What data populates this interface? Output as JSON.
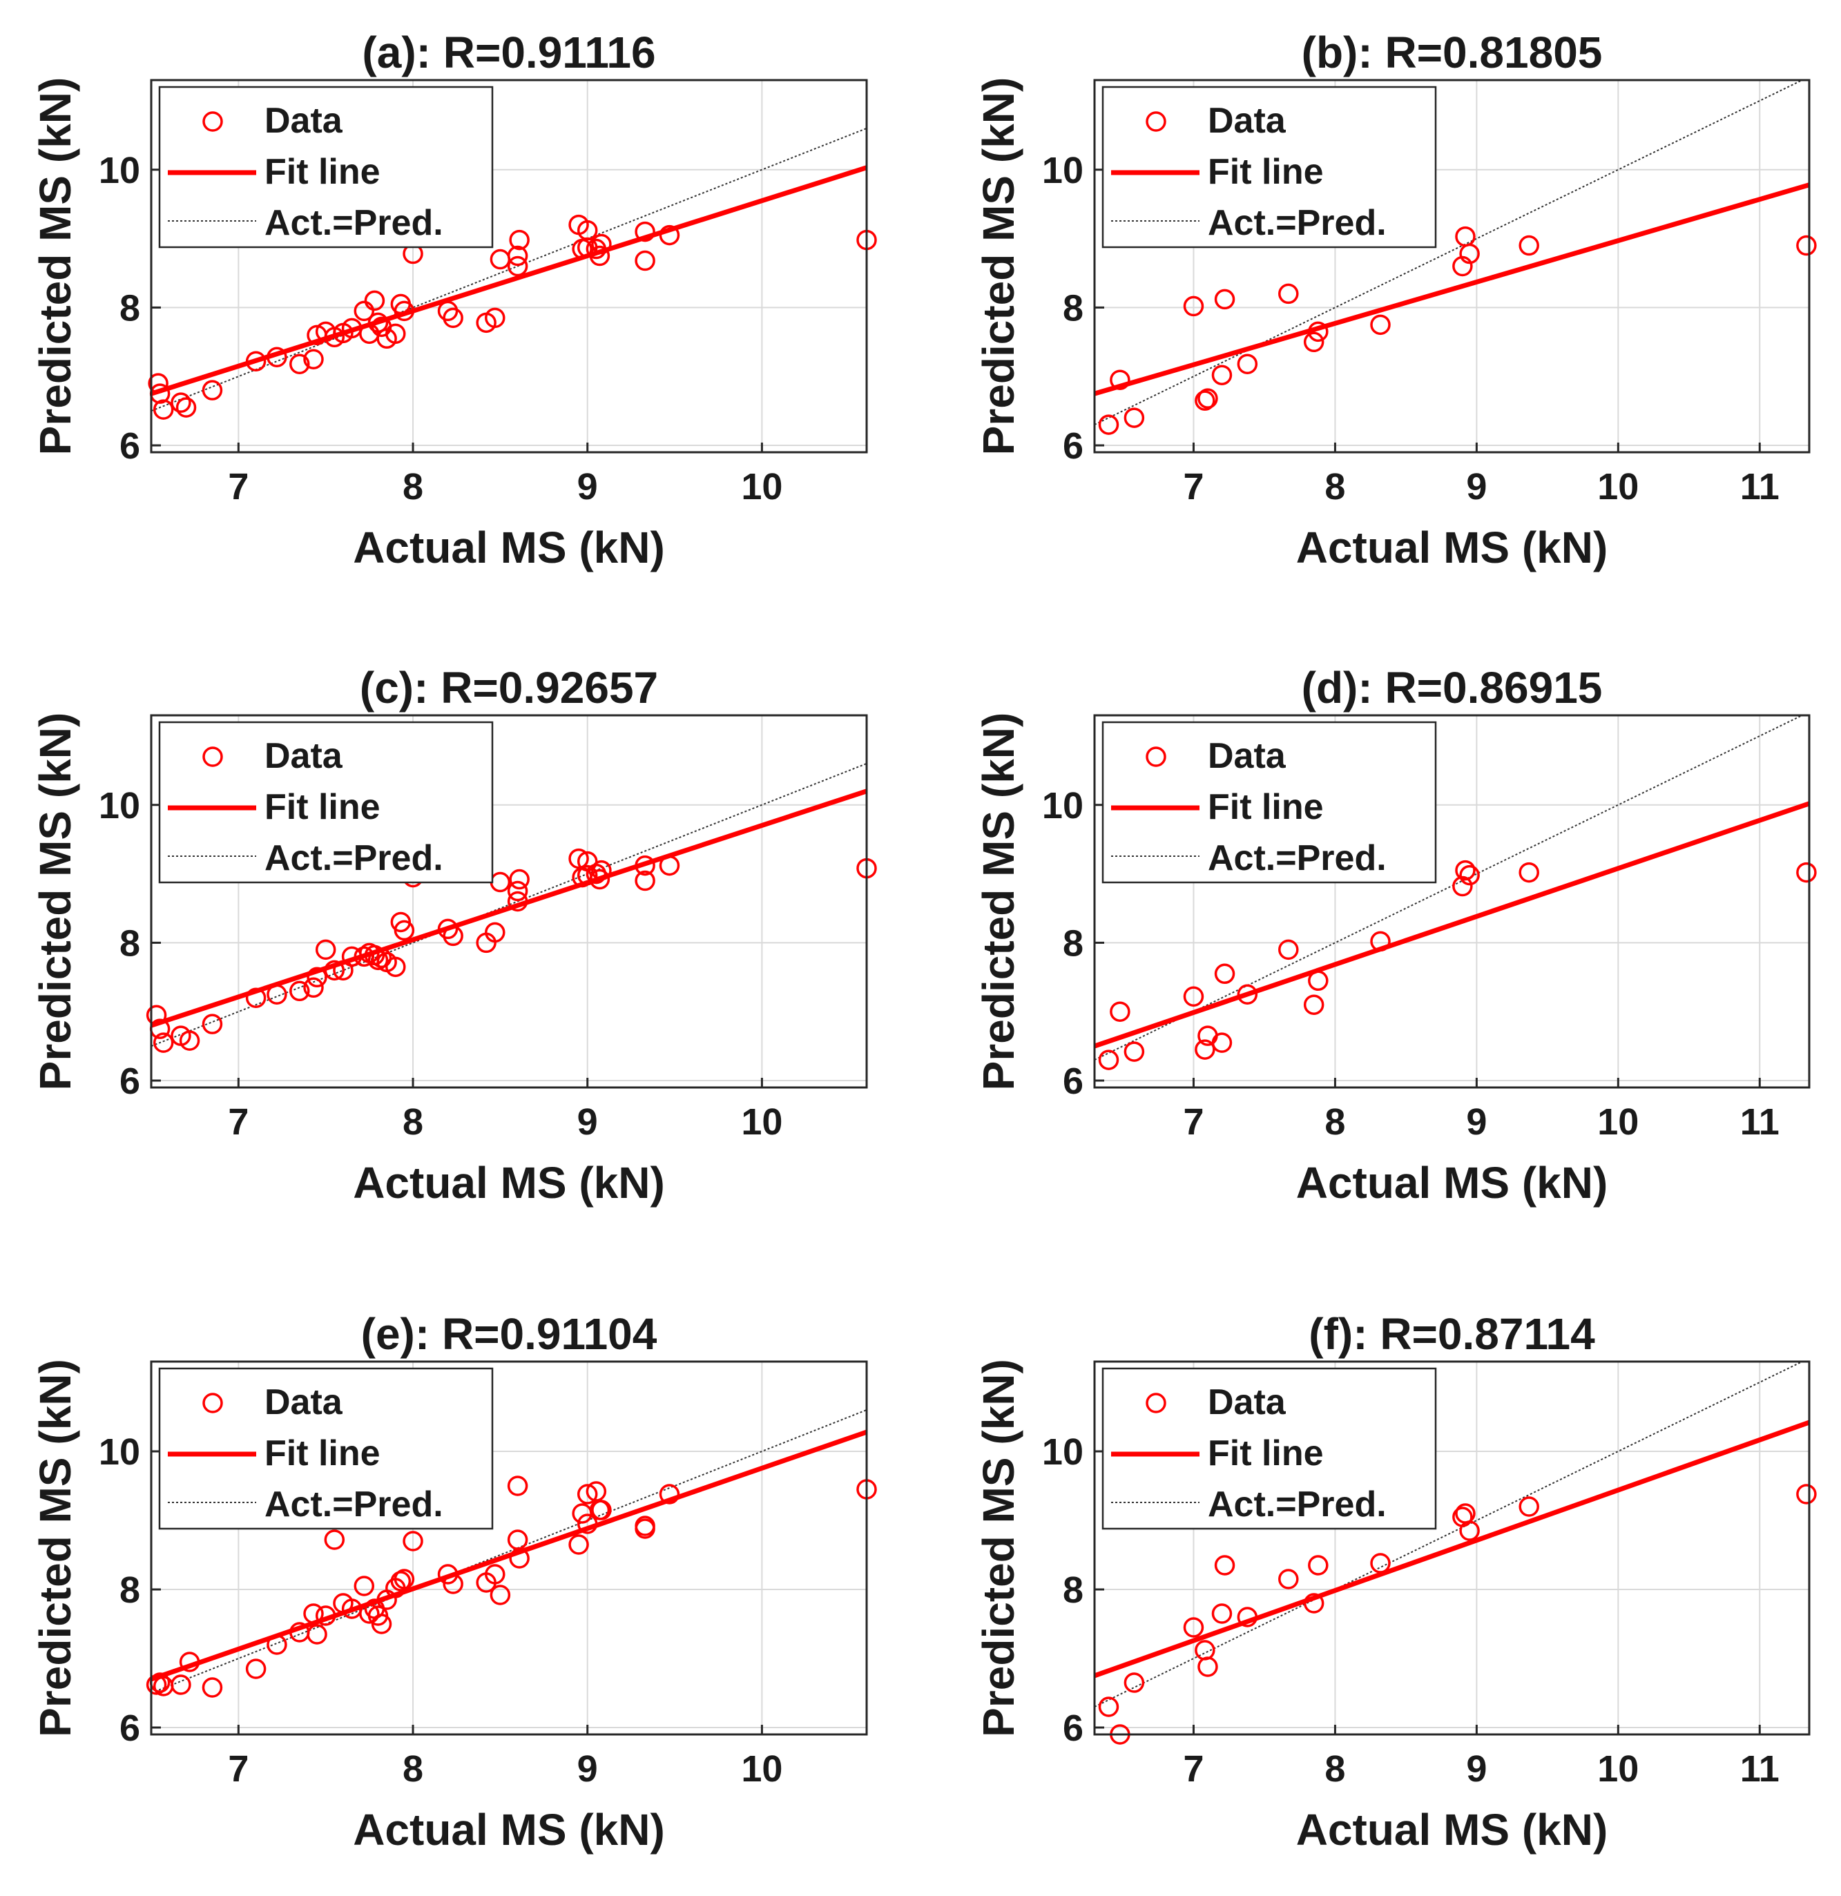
{
  "chart_data": [
    {
      "type": "scatter",
      "title": "(a): R=0.91116",
      "xlabel": "Actual MS (kN)",
      "ylabel": "Predicted MS (kN)",
      "xlim": [
        6.5,
        10.6
      ],
      "ylim": [
        5.9,
        11.3
      ],
      "xticks": [
        7,
        8,
        9,
        10
      ],
      "yticks": [
        6,
        8,
        10
      ],
      "grid": true,
      "legend": {
        "position": "top-left",
        "entries": [
          "Data",
          "Fit line",
          "Act.=Pred."
        ]
      },
      "fit_line": [
        [
          6.5,
          6.75
        ],
        [
          10.6,
          10.03
        ]
      ],
      "identity_line": [
        [
          6.5,
          6.5
        ],
        [
          10.6,
          10.6
        ]
      ],
      "x": [
        6.54,
        6.55,
        6.57,
        6.67,
        6.7,
        6.85,
        7.1,
        7.22,
        7.35,
        7.43,
        7.45,
        7.5,
        7.55,
        7.6,
        7.65,
        7.72,
        7.75,
        7.78,
        7.8,
        7.82,
        7.85,
        7.9,
        7.93,
        7.95,
        8.0,
        8.2,
        8.23,
        8.42,
        8.47,
        8.5,
        8.6,
        8.6,
        8.61,
        8.95,
        8.97,
        9.0,
        9.0,
        9.05,
        9.07,
        9.08,
        9.33,
        9.33,
        9.47,
        10.6
      ],
      "y": [
        6.9,
        6.75,
        6.52,
        6.62,
        6.55,
        6.8,
        7.22,
        7.28,
        7.18,
        7.25,
        7.6,
        7.65,
        7.57,
        7.63,
        7.7,
        7.95,
        7.62,
        8.1,
        7.78,
        7.72,
        7.55,
        7.62,
        8.05,
        7.95,
        8.78,
        7.95,
        7.85,
        7.78,
        7.85,
        8.7,
        8.6,
        8.75,
        8.98,
        9.2,
        8.85,
        9.12,
        8.87,
        8.85,
        8.75,
        8.92,
        9.1,
        8.68,
        9.05,
        8.98
      ]
    },
    {
      "type": "scatter",
      "title": "(b): R=0.81805",
      "xlabel": "Actual MS (kN)",
      "ylabel": "Predicted MS (kN)",
      "xlim": [
        6.3,
        11.35
      ],
      "ylim": [
        5.9,
        11.3
      ],
      "xticks": [
        7,
        8,
        9,
        10,
        11
      ],
      "yticks": [
        6,
        8,
        10
      ],
      "grid": true,
      "legend": {
        "position": "top-left",
        "entries": [
          "Data",
          "Fit line",
          "Act.=Pred."
        ]
      },
      "fit_line": [
        [
          6.3,
          6.75
        ],
        [
          11.35,
          9.78
        ]
      ],
      "identity_line": [
        [
          6.3,
          6.3
        ],
        [
          11.35,
          11.35
        ]
      ],
      "x": [
        6.4,
        6.48,
        6.58,
        7.0,
        7.08,
        7.1,
        7.2,
        7.22,
        7.38,
        7.67,
        7.85,
        7.88,
        8.32,
        8.9,
        8.92,
        8.95,
        9.37,
        11.33
      ],
      "y": [
        6.3,
        6.95,
        6.4,
        8.02,
        6.65,
        6.68,
        7.02,
        8.12,
        7.18,
        8.2,
        7.5,
        7.65,
        7.75,
        8.6,
        9.03,
        8.78,
        8.9,
        8.9
      ]
    },
    {
      "type": "scatter",
      "title": "(c): R=0.92657",
      "xlabel": "Actual MS (kN)",
      "ylabel": "Predicted MS (kN)",
      "xlim": [
        6.5,
        10.6
      ],
      "ylim": [
        5.9,
        11.3
      ],
      "xticks": [
        7,
        8,
        9,
        10
      ],
      "yticks": [
        6,
        8,
        10
      ],
      "grid": true,
      "legend": {
        "position": "top-left",
        "entries": [
          "Data",
          "Fit line",
          "Act.=Pred."
        ]
      },
      "fit_line": [
        [
          6.5,
          6.8
        ],
        [
          10.6,
          10.2
        ]
      ],
      "identity_line": [
        [
          6.5,
          6.5
        ],
        [
          10.6,
          10.6
        ]
      ],
      "x": [
        6.53,
        6.55,
        6.57,
        6.67,
        6.72,
        6.85,
        7.1,
        7.22,
        7.35,
        7.43,
        7.45,
        7.5,
        7.55,
        7.6,
        7.65,
        7.72,
        7.75,
        7.78,
        7.8,
        7.82,
        7.85,
        7.9,
        7.93,
        7.95,
        8.0,
        8.2,
        8.23,
        8.42,
        8.47,
        8.5,
        8.6,
        8.6,
        8.61,
        8.95,
        8.97,
        9.0,
        9.0,
        9.05,
        9.07,
        9.08,
        9.33,
        9.33,
        9.47,
        10.6
      ],
      "y": [
        6.95,
        6.75,
        6.55,
        6.65,
        6.58,
        6.82,
        7.2,
        7.25,
        7.3,
        7.35,
        7.5,
        7.9,
        7.6,
        7.6,
        7.8,
        7.8,
        7.85,
        7.82,
        7.75,
        7.78,
        7.72,
        7.65,
        8.3,
        8.18,
        8.95,
        8.2,
        8.1,
        8.0,
        8.15,
        8.88,
        8.6,
        8.75,
        8.92,
        9.22,
        8.95,
        9.18,
        8.98,
        9.0,
        8.92,
        9.05,
        9.12,
        8.9,
        9.12,
        9.08
      ]
    },
    {
      "type": "scatter",
      "title": "(d): R=0.86915",
      "xlabel": "Actual MS (kN)",
      "ylabel": "Predicted MS (kN)",
      "xlim": [
        6.3,
        11.35
      ],
      "ylim": [
        5.9,
        11.3
      ],
      "xticks": [
        7,
        8,
        9,
        10,
        11
      ],
      "yticks": [
        6,
        8,
        10
      ],
      "grid": true,
      "legend": {
        "position": "top-left",
        "entries": [
          "Data",
          "Fit line",
          "Act.=Pred."
        ]
      },
      "fit_line": [
        [
          6.3,
          6.5
        ],
        [
          11.35,
          10.02
        ]
      ],
      "identity_line": [
        [
          6.3,
          6.3
        ],
        [
          11.35,
          11.35
        ]
      ],
      "x": [
        6.4,
        6.48,
        6.58,
        7.0,
        7.08,
        7.1,
        7.2,
        7.22,
        7.38,
        7.67,
        7.85,
        7.88,
        8.32,
        8.9,
        8.92,
        8.95,
        9.37,
        11.33
      ],
      "y": [
        6.3,
        7.0,
        6.42,
        7.22,
        6.45,
        6.65,
        6.55,
        7.55,
        7.25,
        7.9,
        7.1,
        7.45,
        8.02,
        8.82,
        9.05,
        8.98,
        9.02,
        9.02
      ]
    },
    {
      "type": "scatter",
      "title": "(e): R=0.91104",
      "xlabel": "Actual MS (kN)",
      "ylabel": "Predicted MS (kN)",
      "xlim": [
        6.5,
        10.6
      ],
      "ylim": [
        5.9,
        11.3
      ],
      "xticks": [
        7,
        8,
        9,
        10
      ],
      "yticks": [
        6,
        8,
        10
      ],
      "grid": true,
      "legend": {
        "position": "top-left",
        "entries": [
          "Data",
          "Fit line",
          "Act.=Pred."
        ]
      },
      "fit_line": [
        [
          6.5,
          6.7
        ],
        [
          10.6,
          10.28
        ]
      ],
      "identity_line": [
        [
          6.5,
          6.5
        ],
        [
          10.6,
          10.6
        ]
      ],
      "x": [
        6.53,
        6.55,
        6.57,
        6.67,
        6.72,
        6.85,
        7.1,
        7.22,
        7.35,
        7.43,
        7.45,
        7.5,
        7.55,
        7.6,
        7.65,
        7.72,
        7.75,
        7.78,
        7.8,
        7.82,
        7.85,
        7.9,
        7.93,
        7.95,
        8.0,
        8.2,
        8.23,
        8.42,
        8.47,
        8.5,
        8.6,
        8.6,
        8.61,
        8.95,
        8.97,
        9.0,
        9.0,
        9.05,
        9.07,
        9.08,
        9.33,
        9.33,
        9.47,
        10.6
      ],
      "y": [
        6.62,
        6.65,
        6.6,
        6.62,
        6.95,
        6.58,
        6.85,
        7.2,
        7.38,
        7.65,
        7.35,
        7.62,
        8.72,
        7.8,
        7.72,
        8.05,
        7.65,
        7.72,
        7.62,
        7.5,
        7.85,
        8.02,
        8.12,
        8.15,
        8.7,
        8.22,
        8.08,
        8.1,
        8.22,
        7.92,
        9.5,
        8.72,
        8.45,
        8.65,
        9.1,
        9.38,
        8.95,
        9.42,
        9.15,
        9.15,
        8.92,
        8.88,
        9.38,
        9.45
      ]
    },
    {
      "type": "scatter",
      "title": "(f): R=0.87114",
      "xlabel": "Actual MS (kN)",
      "ylabel": "Predicted MS (kN)",
      "xlim": [
        6.3,
        11.35
      ],
      "ylim": [
        5.9,
        11.3
      ],
      "xticks": [
        7,
        8,
        9,
        10,
        11
      ],
      "yticks": [
        6,
        8,
        10
      ],
      "grid": true,
      "legend": {
        "position": "top-left",
        "entries": [
          "Data",
          "Fit line",
          "Act.=Pred."
        ]
      },
      "fit_line": [
        [
          6.3,
          6.75
        ],
        [
          11.35,
          10.42
        ]
      ],
      "identity_line": [
        [
          6.3,
          6.3
        ],
        [
          11.35,
          11.35
        ]
      ],
      "x": [
        6.4,
        6.48,
        6.58,
        7.0,
        7.08,
        7.1,
        7.2,
        7.22,
        7.38,
        7.67,
        7.85,
        7.88,
        8.32,
        8.9,
        8.92,
        8.95,
        9.37,
        11.33
      ],
      "y": [
        6.3,
        5.9,
        6.65,
        7.45,
        7.12,
        6.88,
        7.65,
        8.35,
        7.6,
        8.15,
        7.8,
        8.35,
        8.38,
        9.05,
        9.1,
        8.85,
        9.2,
        9.38
      ]
    }
  ],
  "colors": {
    "data": "#ff0000",
    "fit": "#ff0000",
    "identity": "#333333",
    "grid": "#d9d9d9",
    "axis": "#262626"
  }
}
